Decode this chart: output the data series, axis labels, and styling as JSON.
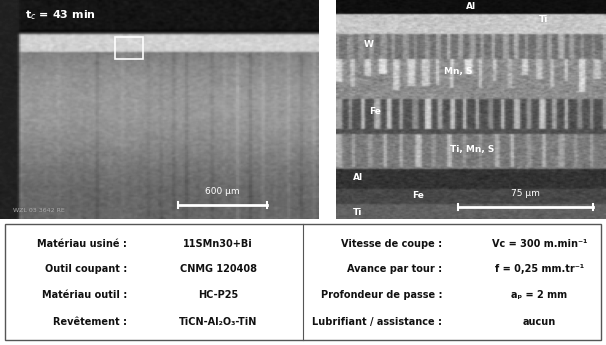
{
  "table_bg": "#ffffff",
  "left_col_labels": [
    "Matériau usiné :",
    "Outil coupant :",
    "Matériau outil :",
    "Revêtement :"
  ],
  "left_col_values": [
    "11SMn30+Bi",
    "CNMG 120408",
    "HC-P25",
    "TiCN-Al₂O₃-TiN"
  ],
  "right_col_labels": [
    "Vitesse de coupe :",
    "Avance par tour :",
    "Profondeur de passe :",
    "Lubrifiant / assistance :"
  ],
  "right_col_values": [
    "Vc = 300 m.min⁻¹",
    "f = 0,25 mm.tr⁻¹",
    "aₚ = 2 mm",
    "aucun"
  ],
  "fig_width": 6.06,
  "fig_height": 3.45,
  "dpi": 100,
  "left_scale_label": "600 μm",
  "right_scale_label": "75 μm",
  "watermark": "WZL 03 3642 RE"
}
